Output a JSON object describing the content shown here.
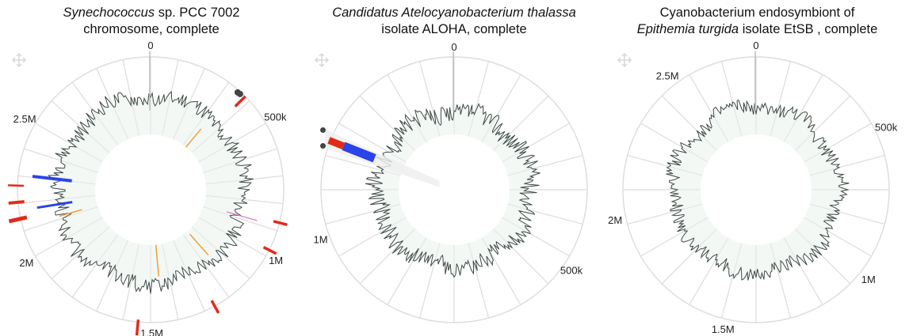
{
  "panels": [
    {
      "title_line1_italic": "Synechococcus",
      "title_line1_rest": " sp. PCC 7002",
      "title_line2_italic": "",
      "title_line2_rest": "chromosome, complete",
      "tick_labels": [
        "0",
        "500k",
        "1M",
        "1.5M",
        "2M",
        "2.5M"
      ],
      "genome_length": 3008047
    },
    {
      "title_line1_italic": "Candidatus Atelocyanobacterium thalassa",
      "title_line1_rest": "",
      "title_line2_italic": "",
      "title_line2_rest": "isolate ALOHA, complete",
      "tick_labels": [
        "0",
        "500k",
        "1M"
      ],
      "genome_length": 1443806
    },
    {
      "title_line1_italic": "",
      "title_line1_rest": "Cyanobacterium endosymbiont of",
      "title_line2_italic": "Epithemia turgida",
      "title_line2_rest": " isolate EtSB , complete",
      "tick_labels": [
        "0",
        "500k",
        "1M",
        "1.5M",
        "2M",
        "2.5M"
      ],
      "genome_length": 2794318
    }
  ],
  "colors": {
    "grid": "#dcdcdc",
    "trace": "#3e4a46",
    "trace_fill": "#e8f1ec",
    "hit_red": "#e02b1a",
    "hit_blue": "#2a44e8",
    "hit_orange": "#f0a030",
    "hit_pink": "#e070c0",
    "marker": "#444444"
  },
  "icons": [
    "move-crosshair-icon"
  ]
}
